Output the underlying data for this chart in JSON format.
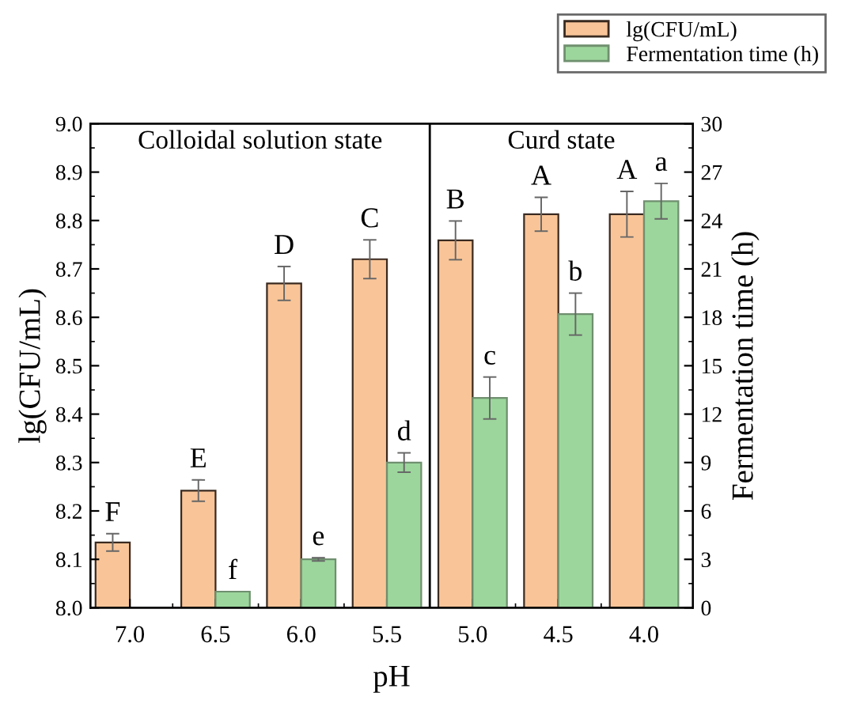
{
  "chart_data": {
    "type": "bar",
    "categories": [
      "7.0",
      "6.5",
      "6.0",
      "5.5",
      "5.0",
      "4.5",
      "4.0"
    ],
    "xlabel": "pH",
    "ylabel": "lg(CFU/mL)",
    "y2label": "Fermentation time (h)",
    "series": [
      {
        "name": "lg(CFU/mL)",
        "color": "#f9c598",
        "values": [
          8.135,
          8.242,
          8.67,
          8.72,
          8.759,
          8.813,
          8.813
        ],
        "errors": [
          0.018,
          0.022,
          0.035,
          0.04,
          0.04,
          0.035,
          0.047
        ],
        "value_labels": [
          "F",
          "E",
          "D",
          "C",
          "B",
          "A",
          "A"
        ]
      },
      {
        "name": "Fermentation time (h)",
        "color": "#9cd69c",
        "axis": "y2",
        "values": [
          null,
          1.0,
          3.0,
          9.0,
          13.0,
          18.2,
          25.2
        ],
        "errors": [
          null,
          null,
          0.1,
          0.6,
          1.3,
          1.3,
          1.1
        ],
        "value_labels": [
          null,
          "f",
          "e",
          "d",
          "c",
          "b",
          "a"
        ]
      }
    ],
    "ylim": [
      8.0,
      9.0
    ],
    "yticks": [
      {
        "value": 8.0,
        "label": "8.0"
      },
      8.1,
      8.2,
      8.3,
      8.4,
      8.5,
      8.6,
      8.7,
      8.8,
      8.9,
      {
        "value": 9.0,
        "label": "9.0"
      }
    ],
    "y2lim": [
      0,
      30
    ],
    "y2ticks": [
      0,
      3,
      6,
      9,
      12,
      15,
      18,
      21,
      24,
      27,
      30
    ],
    "annotations": [
      "Colloidal solution state",
      "Curd state"
    ],
    "legend": "top right",
    "grid": false
  }
}
